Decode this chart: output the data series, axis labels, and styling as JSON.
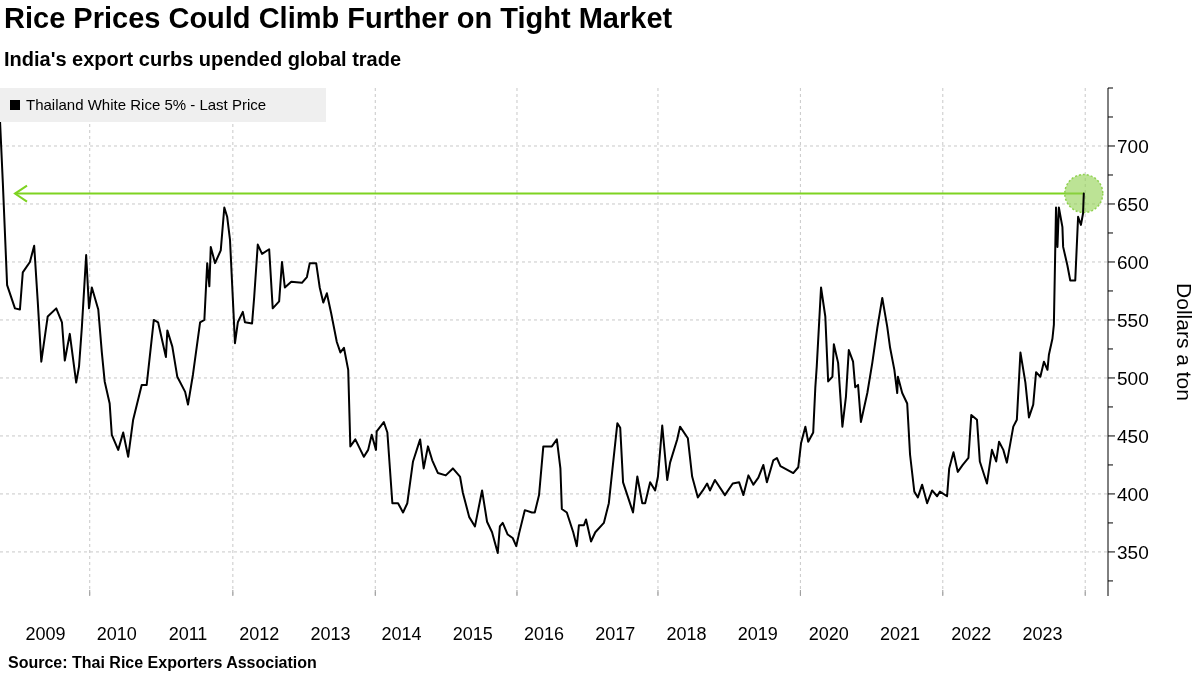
{
  "chart_data": {
    "type": "line",
    "title": "Rice Prices Could Climb Further on Tight Market",
    "subtitle": "India's export curbs upended global trade",
    "ylabel": "Dollars a ton",
    "annotations": [
      "Source: Thai Rice Exporters Association"
    ],
    "xlim": [
      2008.36,
      2023.92
    ],
    "xticks": [
      2009,
      2010,
      2011,
      2012,
      2013,
      2014,
      2015,
      2016,
      2017,
      2018,
      2019,
      2020,
      2021,
      2022,
      2023,
      {
        "value": 2009.62,
        "label": null
      },
      {
        "value": 2011.63,
        "label": null
      },
      {
        "value": 2013.63,
        "label": null
      },
      {
        "value": 2015.62,
        "label": null
      },
      {
        "value": 2017.6,
        "label": null
      },
      {
        "value": 2019.6,
        "label": null
      },
      {
        "value": 2021.6,
        "label": null
      },
      {
        "value": 2023.6,
        "label": null
      }
    ],
    "ylim": [
      312,
      750
    ],
    "yticks": [
      {
        "value": 325,
        "label": null
      },
      350,
      {
        "value": 375,
        "label": null
      },
      400,
      {
        "value": 425,
        "label": null
      },
      450,
      {
        "value": 475,
        "label": null
      },
      500,
      {
        "value": 525,
        "label": null
      },
      550,
      {
        "value": 575,
        "label": null
      },
      600,
      {
        "value": 625,
        "label": null
      },
      650,
      {
        "value": 675,
        "label": null
      },
      700,
      {
        "value": 725,
        "label": null
      },
      {
        "value": 750,
        "label": null
      }
    ],
    "grid": true,
    "legend": "top left",
    "marker": "none",
    "line_style": "solid",
    "ref_lines": [
      {
        "axis": "y",
        "value": 659,
        "label": null,
        "color": "#7ed321"
      }
    ],
    "series": [
      {
        "name": "Thailand White Rice 5% - Last Price",
        "color": "#000000",
        "x": [
          2008.36,
          2008.4,
          2008.46,
          2008.57,
          2008.64,
          2008.68,
          2008.78,
          2008.84,
          2008.89,
          2008.94,
          2009.03,
          2009.15,
          2009.23,
          2009.27,
          2009.34,
          2009.43,
          2009.47,
          2009.51,
          2009.57,
          2009.61,
          2009.65,
          2009.74,
          2009.79,
          2009.83,
          2009.9,
          2009.93,
          2010.02,
          2010.09,
          2010.16,
          2010.23,
          2010.35,
          2010.42,
          2010.52,
          2010.58,
          2010.69,
          2010.71,
          2010.78,
          2010.85,
          2010.96,
          2011.0,
          2011.07,
          2011.17,
          2011.23,
          2011.27,
          2011.3,
          2011.32,
          2011.38,
          2011.46,
          2011.51,
          2011.55,
          2011.59,
          2011.66,
          2011.7,
          2011.77,
          2011.8,
          2011.9,
          2011.93,
          2011.98,
          2012.04,
          2012.14,
          2012.19,
          2012.28,
          2012.32,
          2012.36,
          2012.45,
          2012.6,
          2012.67,
          2012.71,
          2012.8,
          2012.85,
          2012.9,
          2012.95,
          2013.01,
          2013.09,
          2013.14,
          2013.19,
          2013.25,
          2013.28,
          2013.35,
          2013.47,
          2013.53,
          2013.58,
          2013.64,
          2013.65,
          2013.75,
          2013.8,
          2013.87,
          2013.95,
          2014.02,
          2014.08,
          2014.16,
          2014.26,
          2014.31,
          2014.37,
          2014.43,
          2014.51,
          2014.62,
          2014.72,
          2014.82,
          2014.86,
          2014.95,
          2015.03,
          2015.13,
          2015.2,
          2015.27,
          2015.35,
          2015.38,
          2015.42,
          2015.49,
          2015.56,
          2015.61,
          2015.65,
          2015.73,
          2015.83,
          2015.87,
          2015.93,
          2015.99,
          2016.11,
          2016.18,
          2016.23,
          2016.25,
          2016.32,
          2016.41,
          2016.46,
          2016.49,
          2016.56,
          2016.59,
          2016.66,
          2016.72,
          2016.84,
          2016.91,
          2016.96,
          2017.03,
          2017.07,
          2017.11,
          2017.18,
          2017.25,
          2017.31,
          2017.38,
          2017.42,
          2017.49,
          2017.56,
          2017.6,
          2017.66,
          2017.73,
          2017.77,
          2017.87,
          2017.91,
          2018.02,
          2018.08,
          2018.16,
          2018.23,
          2018.29,
          2018.33,
          2018.4,
          2018.54,
          2018.65,
          2018.74,
          2018.8,
          2018.87,
          2018.94,
          2019.01,
          2019.08,
          2019.13,
          2019.22,
          2019.27,
          2019.32,
          2019.5,
          2019.57,
          2019.61,
          2019.67,
          2019.71,
          2019.78,
          2019.81,
          2019.83,
          2019.89,
          2019.95,
          2019.99,
          2020.05,
          2020.07,
          2020.13,
          2020.19,
          2020.24,
          2020.28,
          2020.34,
          2020.37,
          2020.41,
          2020.45,
          2020.54,
          2020.61,
          2020.68,
          2020.75,
          2020.82,
          2020.86,
          2020.92,
          2020.96,
          2020.97,
          2021.03,
          2021.1,
          2021.14,
          2021.2,
          2021.25,
          2021.31,
          2021.38,
          2021.45,
          2021.52,
          2021.56,
          2021.66,
          2021.69,
          2021.75,
          2021.81,
          2021.88,
          2021.96,
          2022.0,
          2022.08,
          2022.12,
          2022.22,
          2022.29,
          2022.35,
          2022.39,
          2022.45,
          2022.5,
          2022.59,
          2022.64,
          2022.69,
          2022.76,
          2022.81,
          2022.87,
          2022.91,
          2022.97,
          2023.02,
          2023.07,
          2023.09,
          2023.14,
          2023.16,
          2023.19,
          2023.21,
          2023.23,
          2023.28,
          2023.29,
          2023.35,
          2023.39,
          2023.46,
          2023.5,
          2023.54,
          2023.57,
          2023.58
        ],
        "values": [
          722,
          668,
          580,
          560,
          559,
          591,
          600,
          614,
          566,
          514,
          553,
          560,
          548,
          515,
          538,
          496,
          510,
          544,
          606,
          560,
          578,
          559,
          522,
          497,
          478,
          451,
          438,
          453,
          432,
          464,
          494,
          494,
          550,
          548,
          518,
          541,
          527,
          501,
          488,
          477,
          503,
          548,
          550,
          599,
          579,
          613,
          599,
          610,
          647,
          639,
          619,
          530,
          548,
          557,
          548,
          547,
          570,
          615,
          607,
          611,
          560,
          566,
          600,
          578,
          583,
          582,
          587,
          599,
          599,
          578,
          565,
          573,
          556,
          531,
          522,
          526,
          507,
          441,
          447,
          432,
          438,
          451,
          438,
          454,
          462,
          453,
          392,
          392,
          384,
          392,
          428,
          447,
          422,
          441,
          429,
          418,
          416,
          422,
          415,
          401,
          380,
          372,
          403,
          376,
          367,
          349,
          372,
          375,
          365,
          362,
          355,
          366,
          386,
          384,
          384,
          399,
          441,
          441,
          447,
          422,
          387,
          384,
          367,
          355,
          373,
          373,
          378,
          359,
          367,
          375,
          392,
          421,
          461,
          457,
          410,
          397,
          384,
          415,
          392,
          392,
          410,
          403,
          415,
          459,
          412,
          427,
          447,
          458,
          448,
          415,
          397,
          403,
          409,
          403,
          412,
          399,
          409,
          410,
          399,
          416,
          408,
          414,
          425,
          410,
          429,
          431,
          424,
          418,
          423,
          444,
          458,
          445,
          453,
          492,
          510,
          578,
          553,
          497,
          501,
          529,
          513,
          458,
          484,
          524,
          514,
          492,
          494,
          462,
          487,
          513,
          543,
          569,
          544,
          526,
          507,
          487,
          501,
          487,
          478,
          434,
          402,
          397,
          408,
          392,
          403,
          398,
          402,
          398,
          422,
          436,
          419,
          425,
          431,
          468,
          464,
          428,
          409,
          438,
          428,
          445,
          438,
          427,
          458,
          464,
          522,
          496,
          466,
          477,
          505,
          501,
          514,
          507,
          520,
          534,
          546,
          647,
          613,
          647,
          630,
          613,
          597,
          584,
          584,
          639,
          632,
          642,
          659
        ]
      },
      {
        "type": "scatter",
        "color": "#8fd14f",
        "x": [
          2023.58
        ],
        "values": [
          659
        ],
        "marker": "circle"
      }
    ]
  }
}
